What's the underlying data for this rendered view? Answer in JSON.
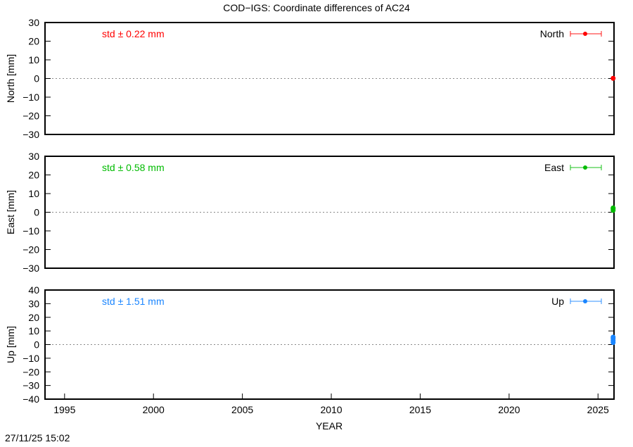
{
  "chart_data": {
    "type": "scatter",
    "title": "COD−IGS: Coordinate differences of AC24",
    "xlabel": "YEAR",
    "xlim": [
      1993.9,
      2025.9
    ],
    "xticks": [
      1995,
      2000,
      2005,
      2010,
      2015,
      2020,
      2025
    ],
    "timestamp": "27/11/25 15:02",
    "grid": false,
    "panels": [
      {
        "name": "North",
        "ylabel": "North [mm]",
        "ylim": [
          -30,
          30
        ],
        "yticks": [
          -30,
          -20,
          -10,
          0,
          10,
          20,
          30
        ],
        "std_label": "std ± 0.22 mm",
        "legend": "North",
        "legend_position": "top-right",
        "color": "#ff0000",
        "points": [
          {
            "x": 2025.85,
            "y": 0.1
          }
        ]
      },
      {
        "name": "East",
        "ylabel": "East [mm]",
        "ylim": [
          -30,
          30
        ],
        "yticks": [
          -30,
          -20,
          -10,
          0,
          10,
          20,
          30
        ],
        "std_label": "std ± 0.58 mm",
        "legend": "East",
        "legend_position": "top-right",
        "color": "#00bb00",
        "points": [
          {
            "x": 2025.85,
            "y": 1.0
          },
          {
            "x": 2025.85,
            "y": 1.8
          },
          {
            "x": 2025.85,
            "y": 2.3
          }
        ]
      },
      {
        "name": "Up",
        "ylabel": "Up [mm]",
        "ylim": [
          -40,
          40
        ],
        "yticks": [
          -40,
          -30,
          -20,
          -10,
          0,
          10,
          20,
          30,
          40
        ],
        "std_label": "std ± 1.51 mm",
        "legend": "Up",
        "legend_position": "top-right",
        "color": "#1a85ff",
        "points": [
          {
            "x": 2025.85,
            "y": 1.5
          },
          {
            "x": 2025.85,
            "y": 3.0
          },
          {
            "x": 2025.85,
            "y": 4.5
          },
          {
            "x": 2025.85,
            "y": 5.5
          }
        ]
      }
    ]
  }
}
